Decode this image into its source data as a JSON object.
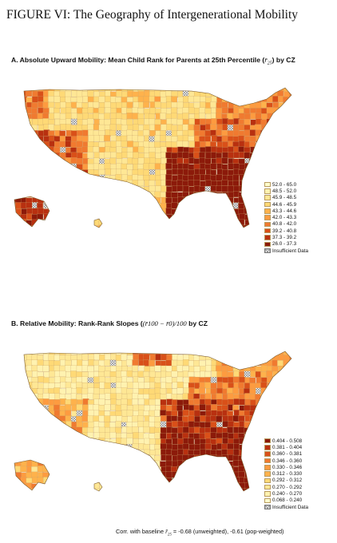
{
  "figure": {
    "title": "FIGURE VI: The Geography of Intergenerational Mobility"
  },
  "panelA": {
    "title_pre": "A. Absolute Upward Mobility: Mean Child Rank for Parents at 25th Percentile (",
    "title_math": "r̄",
    "title_sub": "25",
    "title_post": ") by CZ",
    "legend": [
      "52.0 - 65.0",
      "48.5 - 52.0",
      "45.9 - 48.5",
      "44.6 - 45.9",
      "43.3 - 44.6",
      "42.0 - 43.3",
      "40.8 - 42.0",
      "39.2 - 40.8",
      "37.3 - 39.2",
      "26.0 - 37.3",
      "Insufficient Data"
    ],
    "colors": [
      "#ffffcc",
      "#fff2b0",
      "#fee795",
      "#fed976",
      "#feb24c",
      "#fd9b40",
      "#f07a30",
      "#d95019",
      "#b83010",
      "#8c1a0a",
      "hatched"
    ]
  },
  "panelB": {
    "title_pre": "B. Relative Mobility: Rank-Rank Slopes (",
    "title_math": "(r̄100 − r̄0)/100",
    "title_post": " by CZ",
    "legend": [
      "0.404 - 0.508",
      "0.381 - 0.404",
      "0.360 - 0.381",
      "0.346 - 0.360",
      "0.330 - 0.346",
      "0.312 - 0.330",
      "0.292 - 0.312",
      "0.270 - 0.292",
      "0.240 - 0.270",
      "0.068 - 0.240",
      "Insufficient Data"
    ],
    "colors": [
      "#8c1a0a",
      "#b83010",
      "#d95019",
      "#f07a30",
      "#fd9b40",
      "#feb24c",
      "#fed976",
      "#fee795",
      "#fff2b0",
      "#ffffcc",
      "hatched"
    ]
  },
  "footer": {
    "corr_pre": "Corr. with baseline ",
    "corr_math": "r̄",
    "corr_sub": "25",
    "corr_post": " = -0.68 (unweighted), -0.61 (pop-weighted)"
  }
}
